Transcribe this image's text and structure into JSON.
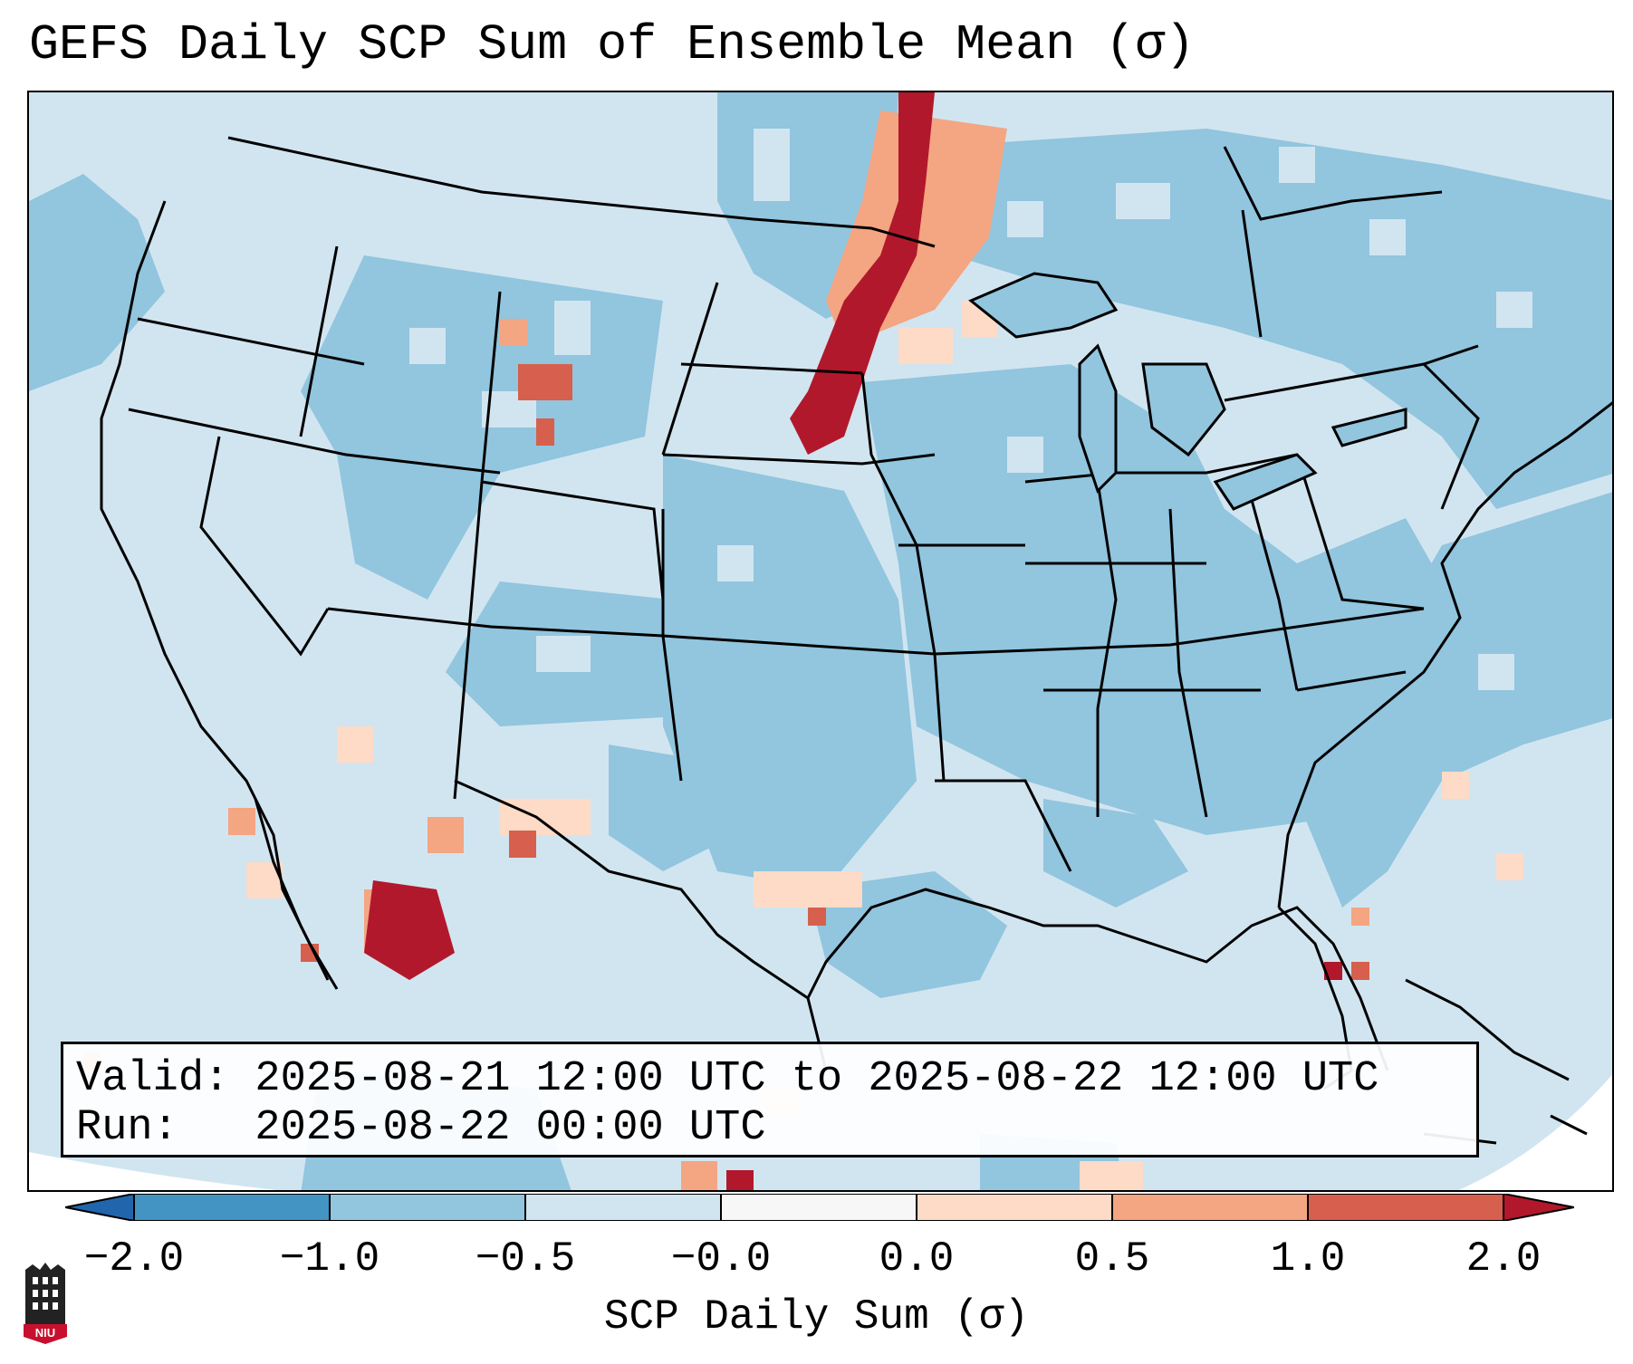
{
  "title": "GEFS Daily SCP Sum of Ensemble Mean (σ)",
  "info": {
    "valid_line": "Valid: 2025-08-21 12:00 UTC to 2025-08-22 12:00 UTC",
    "run_line": "Run:   2025-08-22 00:00 UTC"
  },
  "colorbar": {
    "label": "SCP Daily Sum (σ)",
    "ticks": [
      "−2.0",
      "−1.0",
      "−0.5",
      "−0.0",
      "0.0",
      "0.5",
      "1.0",
      "2.0"
    ],
    "colors": {
      "below": "#2166ac",
      "b1": "#4393c3",
      "b2": "#92c5de",
      "b3": "#d1e5f0",
      "b4": "#f7f7f7",
      "b5": "#fddbc7",
      "b6": "#f4a582",
      "b7": "#d6604d",
      "above": "#b2182b"
    }
  },
  "logo": {
    "text": "NIU"
  }
}
